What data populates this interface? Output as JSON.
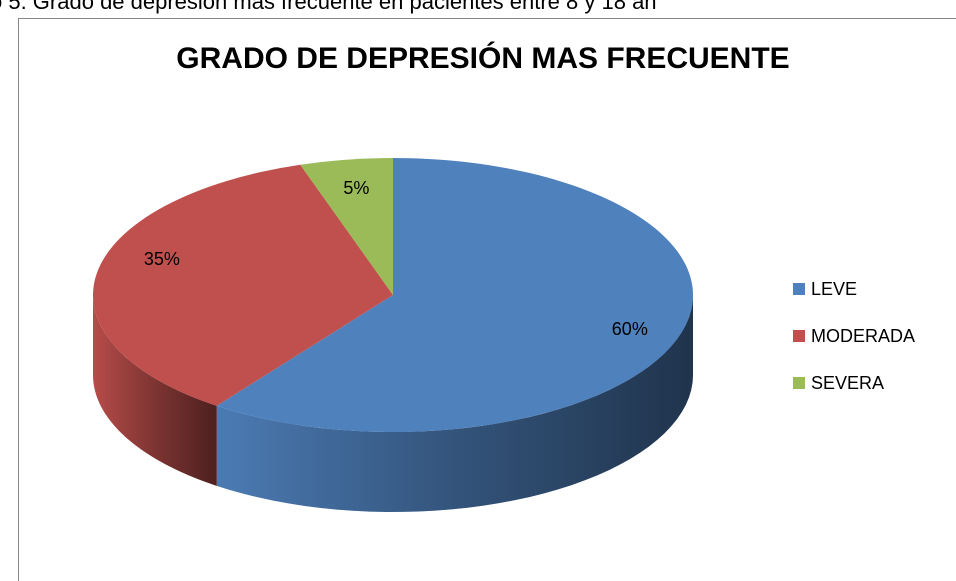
{
  "caption": "o 5. Grado de depresión mas frecuente en pacientes entre 8 y 18 añ",
  "chart_data": {
    "type": "pie",
    "title": "GRADO DE DEPRESIÓN MAS FRECUENTE",
    "categories": [
      "LEVE",
      "MODERADA",
      "SEVERA"
    ],
    "values": [
      60,
      35,
      5
    ],
    "value_labels": [
      "60%",
      "35%",
      "5%"
    ],
    "colors": [
      "#4f81bd",
      "#c0504d",
      "#9bbb59"
    ],
    "legend": "right"
  }
}
